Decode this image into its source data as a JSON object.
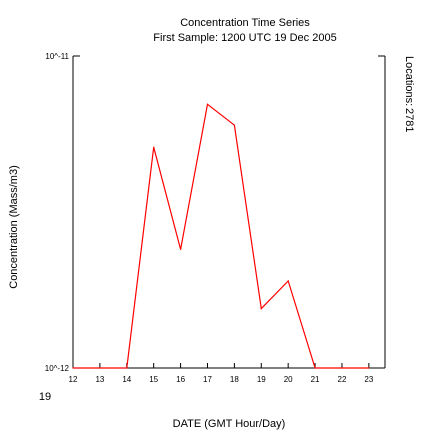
{
  "chart_data": {
    "type": "line",
    "title": "Concentration Time Series",
    "subtitle": "First Sample: 1200 UTC 19 Dec 2005",
    "xlabel": "DATE (GMT Hour/Day)",
    "ylabel": "Concentration (Mass/m3)",
    "side_label": "Locations:",
    "side_value": "2781",
    "x_ticks": [
      12,
      13,
      14,
      15,
      16,
      17,
      18,
      19,
      20,
      21,
      22,
      23
    ],
    "x_day_label": "19",
    "x_range": [
      12,
      23.6
    ],
    "y_scale": "log",
    "y_range": [
      1e-12,
      1e-11
    ],
    "y_ticks": [
      {
        "label": "10^-12",
        "value": 1e-12
      },
      {
        "label": "10^-11",
        "value": 1e-11
      }
    ],
    "line_color": "#ff0000",
    "x": [
      12,
      13,
      14,
      15,
      16,
      17,
      18,
      19,
      20,
      21,
      22,
      23
    ],
    "values": [
      1e-12,
      1e-12,
      1e-12,
      5.1e-12,
      2.4e-12,
      7e-12,
      6e-12,
      1.55e-12,
      1.9e-12,
      1e-12,
      1e-12,
      1e-12
    ]
  }
}
